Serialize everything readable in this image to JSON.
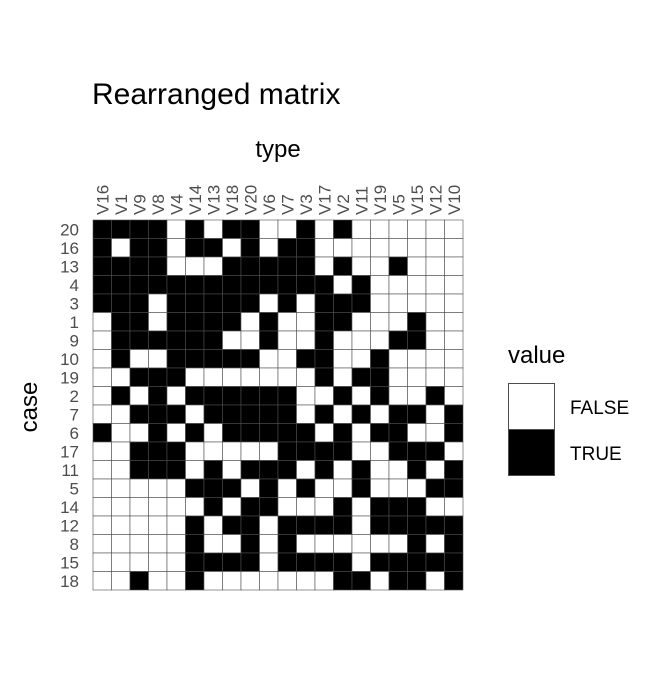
{
  "chart_data": {
    "type": "heatmap",
    "title": "Rearranged matrix",
    "xlabel": "type",
    "ylabel": "case",
    "columns": [
      "V16",
      "V1",
      "V9",
      "V8",
      "V4",
      "V14",
      "V13",
      "V18",
      "V20",
      "V6",
      "V7",
      "V3",
      "V17",
      "V2",
      "V11",
      "V19",
      "V5",
      "V15",
      "V12",
      "V10"
    ],
    "rows": [
      "20",
      "16",
      "13",
      "4",
      "3",
      "1",
      "9",
      "10",
      "19",
      "2",
      "7",
      "6",
      "17",
      "11",
      "5",
      "14",
      "12",
      "8",
      "15",
      "18"
    ],
    "matrix": [
      [
        1,
        1,
        1,
        1,
        0,
        1,
        0,
        1,
        1,
        0,
        0,
        1,
        0,
        1,
        0,
        0,
        0,
        0,
        0,
        0
      ],
      [
        1,
        0,
        1,
        1,
        0,
        1,
        1,
        0,
        1,
        0,
        1,
        1,
        0,
        0,
        0,
        0,
        0,
        0,
        0,
        0
      ],
      [
        1,
        1,
        1,
        1,
        0,
        0,
        0,
        1,
        1,
        1,
        1,
        1,
        0,
        1,
        0,
        0,
        1,
        0,
        0,
        0
      ],
      [
        1,
        1,
        1,
        1,
        1,
        1,
        1,
        1,
        1,
        1,
        1,
        1,
        1,
        0,
        1,
        0,
        0,
        0,
        0,
        0
      ],
      [
        1,
        1,
        1,
        0,
        1,
        1,
        1,
        1,
        1,
        0,
        1,
        0,
        1,
        1,
        1,
        0,
        0,
        0,
        0,
        0
      ],
      [
        0,
        1,
        1,
        0,
        1,
        1,
        1,
        1,
        0,
        1,
        0,
        0,
        1,
        1,
        0,
        0,
        0,
        1,
        0,
        0
      ],
      [
        0,
        1,
        1,
        1,
        1,
        1,
        1,
        0,
        0,
        1,
        0,
        0,
        1,
        0,
        0,
        0,
        1,
        1,
        0,
        0
      ],
      [
        0,
        1,
        0,
        0,
        1,
        1,
        1,
        1,
        1,
        0,
        0,
        1,
        1,
        0,
        0,
        1,
        0,
        0,
        0,
        0
      ],
      [
        0,
        0,
        1,
        1,
        1,
        0,
        0,
        0,
        0,
        0,
        0,
        0,
        1,
        0,
        1,
        1,
        0,
        0,
        0,
        0
      ],
      [
        0,
        1,
        0,
        1,
        0,
        1,
        1,
        1,
        1,
        1,
        1,
        0,
        0,
        1,
        0,
        1,
        0,
        0,
        1,
        0
      ],
      [
        0,
        0,
        1,
        1,
        1,
        0,
        1,
        1,
        1,
        1,
        1,
        0,
        1,
        0,
        1,
        0,
        1,
        1,
        0,
        1
      ],
      [
        1,
        0,
        0,
        1,
        0,
        1,
        0,
        1,
        1,
        1,
        1,
        1,
        0,
        1,
        0,
        1,
        1,
        0,
        0,
        1
      ],
      [
        0,
        0,
        1,
        1,
        1,
        0,
        0,
        0,
        0,
        0,
        1,
        1,
        1,
        1,
        0,
        0,
        1,
        1,
        1,
        0
      ],
      [
        0,
        0,
        1,
        1,
        1,
        0,
        1,
        0,
        1,
        1,
        1,
        0,
        1,
        0,
        1,
        0,
        0,
        1,
        0,
        1
      ],
      [
        0,
        0,
        0,
        0,
        0,
        1,
        1,
        1,
        0,
        1,
        0,
        1,
        0,
        0,
        1,
        0,
        0,
        0,
        1,
        1
      ],
      [
        0,
        0,
        0,
        0,
        0,
        0,
        1,
        0,
        1,
        1,
        0,
        0,
        0,
        1,
        0,
        1,
        1,
        1,
        0,
        0
      ],
      [
        0,
        0,
        0,
        0,
        0,
        1,
        0,
        1,
        1,
        0,
        1,
        1,
        1,
        1,
        0,
        1,
        1,
        1,
        1,
        1
      ],
      [
        0,
        0,
        0,
        0,
        0,
        1,
        0,
        0,
        1,
        0,
        1,
        0,
        0,
        0,
        0,
        0,
        0,
        1,
        0,
        1
      ],
      [
        0,
        0,
        0,
        0,
        0,
        1,
        1,
        1,
        1,
        0,
        1,
        1,
        1,
        1,
        0,
        1,
        1,
        1,
        1,
        1
      ],
      [
        0,
        0,
        1,
        0,
        0,
        1,
        0,
        0,
        0,
        0,
        0,
        0,
        0,
        1,
        1,
        0,
        1,
        1,
        0,
        1
      ]
    ],
    "legend": {
      "title": "value",
      "placement": "right",
      "entries": [
        {
          "label": "FALSE",
          "color": "#ffffff"
        },
        {
          "label": "TRUE",
          "color": "#000000"
        }
      ]
    },
    "grid": false
  }
}
